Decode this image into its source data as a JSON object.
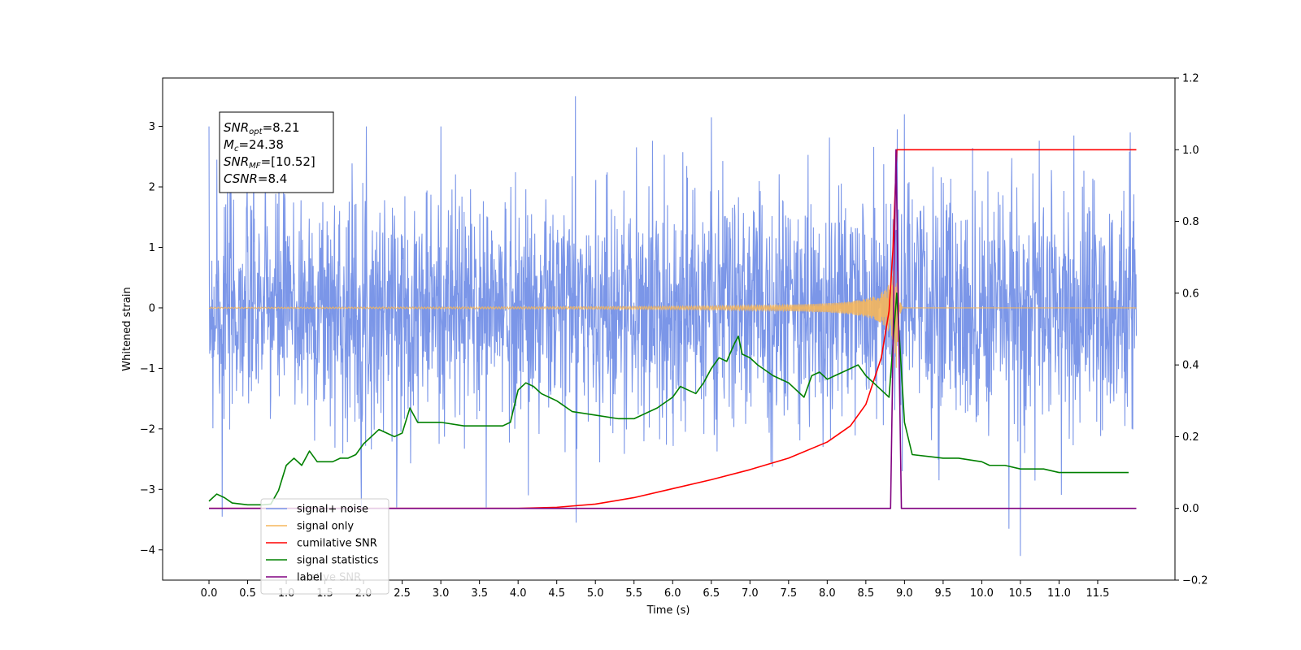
{
  "chart_data": {
    "type": "line",
    "xlabel": "Time (s)",
    "ylabel": "Whitened strain",
    "xlim": [
      -0.6,
      12.5
    ],
    "ylim": [
      -4.5,
      3.8
    ],
    "y2lim": [
      -0.2,
      1.2
    ],
    "xticks": [
      "0.0",
      "0.5",
      "1.0",
      "1.5",
      "2.0",
      "2.5",
      "3.0",
      "3.5",
      "4.0",
      "4.5",
      "5.0",
      "5.5",
      "6.0",
      "6.5",
      "7.0",
      "7.5",
      "8.0",
      "8.5",
      "9.0",
      "9.5",
      "10.0",
      "10.5",
      "11.0",
      "11.5"
    ],
    "yticks": [
      "3",
      "2",
      "1",
      "0",
      "−1",
      "−2",
      "−3",
      "−4"
    ],
    "y2ticks": [
      "1.2",
      "1.0",
      "0.8",
      "0.6",
      "0.4",
      "0.2",
      "0.0",
      "−0.2"
    ],
    "annotation": {
      "lines": [
        {
          "main": "SNR",
          "sub": "opt",
          "rest": "=8.21"
        },
        {
          "main": "M",
          "sub": "c",
          "rest": "=24.38"
        },
        {
          "main": "SNR",
          "sub": "MF",
          "rest": "=[10.52]"
        },
        {
          "main": "CSNR",
          "sub": "",
          "rest": "=8.4"
        }
      ]
    },
    "legend": {
      "placement": "lower-left",
      "entries": [
        {
          "label": "signal+ noise",
          "color": "#7b96e8"
        },
        {
          "label": "signal only",
          "color": "#f5b65c"
        },
        {
          "label": "cumilative SNR",
          "color": "#ff0000"
        },
        {
          "label": "signal statistics",
          "color": "#008000"
        },
        {
          "label": "label",
          "color": "#800080"
        }
      ],
      "ghost_text": "lative SNR"
    },
    "series": [
      {
        "name": "signal+ noise",
        "axis": "left",
        "color": "#7b96e8",
        "x_range": [
          0.0,
          12.0
        ],
        "typical_amplitude": 1.3,
        "peaks": [
          [
            4.74,
            3.5
          ],
          [
            10.5,
            -4.1
          ],
          [
            0.17,
            -3.45
          ],
          [
            4.75,
            -3.55
          ],
          [
            10.35,
            -3.65
          ],
          [
            9.0,
            3.2
          ],
          [
            6.5,
            3.15
          ],
          [
            11.92,
            2.9
          ],
          [
            0.1,
            2.45
          ]
        ]
      },
      {
        "name": "signal only",
        "axis": "left",
        "color": "#f5b65c",
        "x_range": [
          0.0,
          12.0
        ],
        "merger_time": 8.9,
        "peak_amplitude": 1.1
      },
      {
        "name": "cumilative SNR",
        "axis": "right",
        "color": "#ff0000",
        "x": [
          0.0,
          3.0,
          4.0,
          4.5,
          5.0,
          5.5,
          6.0,
          6.5,
          7.0,
          7.5,
          8.0,
          8.3,
          8.5,
          8.7,
          8.8,
          8.85,
          8.9,
          8.95,
          9.0,
          10.0,
          11.0,
          12.0
        ],
        "y": [
          0.0,
          0.0,
          0.0,
          0.003,
          0.012,
          0.03,
          0.055,
          0.08,
          0.108,
          0.14,
          0.185,
          0.23,
          0.29,
          0.42,
          0.55,
          0.72,
          1.0,
          1.0,
          1.0,
          1.0,
          1.0,
          1.0
        ]
      },
      {
        "name": "signal statistics",
        "axis": "right",
        "color": "#008000",
        "x": [
          0.0,
          0.1,
          0.2,
          0.3,
          0.5,
          0.7,
          0.8,
          0.9,
          1.0,
          1.1,
          1.2,
          1.3,
          1.4,
          1.5,
          1.6,
          1.7,
          1.8,
          1.9,
          2.0,
          2.1,
          2.2,
          2.3,
          2.4,
          2.5,
          2.6,
          2.7,
          2.8,
          3.0,
          3.3,
          3.5,
          3.6,
          3.8,
          3.9,
          4.0,
          4.1,
          4.2,
          4.3,
          4.4,
          4.5,
          4.7,
          5.0,
          5.3,
          5.5,
          5.8,
          6.0,
          6.1,
          6.2,
          6.3,
          6.4,
          6.5,
          6.6,
          6.7,
          6.8,
          6.85,
          6.9,
          7.0,
          7.1,
          7.3,
          7.5,
          7.6,
          7.7,
          7.8,
          7.9,
          8.0,
          8.1,
          8.2,
          8.3,
          8.4,
          8.5,
          8.6,
          8.7,
          8.8,
          8.9,
          9.0,
          9.1,
          9.5,
          9.7,
          10.0,
          10.1,
          10.3,
          10.5,
          10.8,
          11.0,
          11.3,
          11.5,
          11.7,
          11.9
        ],
        "y": [
          0.02,
          0.04,
          0.03,
          0.015,
          0.01,
          0.01,
          0.012,
          0.05,
          0.12,
          0.14,
          0.12,
          0.16,
          0.13,
          0.13,
          0.13,
          0.14,
          0.14,
          0.15,
          0.18,
          0.2,
          0.22,
          0.21,
          0.2,
          0.21,
          0.28,
          0.24,
          0.24,
          0.24,
          0.23,
          0.23,
          0.23,
          0.23,
          0.24,
          0.33,
          0.35,
          0.34,
          0.32,
          0.31,
          0.3,
          0.27,
          0.26,
          0.25,
          0.25,
          0.28,
          0.31,
          0.34,
          0.33,
          0.32,
          0.35,
          0.39,
          0.42,
          0.41,
          0.46,
          0.48,
          0.43,
          0.42,
          0.4,
          0.37,
          0.35,
          0.33,
          0.31,
          0.37,
          0.38,
          0.36,
          0.37,
          0.38,
          0.39,
          0.4,
          0.37,
          0.35,
          0.33,
          0.31,
          0.6,
          0.24,
          0.15,
          0.14,
          0.14,
          0.13,
          0.12,
          0.12,
          0.11,
          0.11,
          0.1,
          0.1,
          0.1,
          0.1,
          0.1
        ]
      },
      {
        "name": "label",
        "axis": "right",
        "color": "#800080",
        "x": [
          0.0,
          8.82,
          8.89,
          8.96,
          12.0
        ],
        "y": [
          0.0,
          0.0,
          1.0,
          0.0,
          0.0
        ]
      }
    ]
  }
}
